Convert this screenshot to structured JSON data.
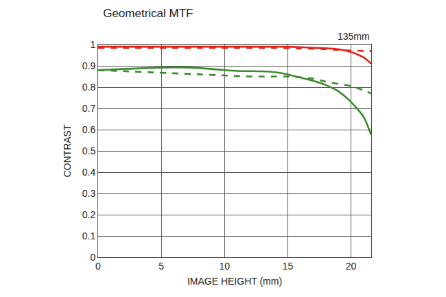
{
  "chart_data": {
    "type": "line",
    "title": "Geometrical MTF",
    "annotations": [
      {
        "text": "135mm"
      }
    ],
    "x_label": "IMAGE HEIGHT (mm)",
    "y_label": "CONTRAST",
    "x": [
      0,
      2,
      4,
      6,
      8,
      10,
      11,
      12,
      13,
      14,
      15,
      16,
      17,
      18,
      19,
      20,
      21,
      21.6
    ],
    "series": [
      {
        "color": "#e3241c",
        "line_style": "solid",
        "values": [
          0.99,
          0.99,
          0.99,
          0.99,
          0.99,
          0.99,
          0.99,
          0.99,
          0.99,
          0.99,
          0.99,
          0.988,
          0.985,
          0.983,
          0.978,
          0.965,
          0.94,
          0.91
        ]
      },
      {
        "color": "#e3241c",
        "line_style": "dashed",
        "values": [
          0.985,
          0.985,
          0.985,
          0.985,
          0.985,
          0.985,
          0.985,
          0.985,
          0.985,
          0.985,
          0.983,
          0.982,
          0.98,
          0.978,
          0.975,
          0.972,
          0.97,
          0.97
        ]
      },
      {
        "color": "#3a8a2c",
        "line_style": "solid",
        "values": [
          0.88,
          0.885,
          0.89,
          0.893,
          0.89,
          0.88,
          0.876,
          0.875,
          0.874,
          0.87,
          0.86,
          0.845,
          0.83,
          0.81,
          0.78,
          0.73,
          0.66,
          0.575
        ]
      },
      {
        "color": "#3a8a2c",
        "line_style": "dashed",
        "values": [
          0.88,
          0.875,
          0.87,
          0.865,
          0.86,
          0.855,
          0.852,
          0.85,
          0.85,
          0.85,
          0.85,
          0.846,
          0.84,
          0.826,
          0.815,
          0.805,
          0.785,
          0.77
        ]
      }
    ],
    "xlim": [
      0,
      21.6
    ],
    "xticks": [
      0,
      5,
      10,
      15,
      20
    ],
    "ylim": [
      0,
      1
    ],
    "yticks": [
      0,
      0.1,
      0.2,
      0.3,
      0.4,
      0.5,
      0.6,
      0.7,
      0.8,
      0.9,
      1
    ],
    "grid": true
  }
}
